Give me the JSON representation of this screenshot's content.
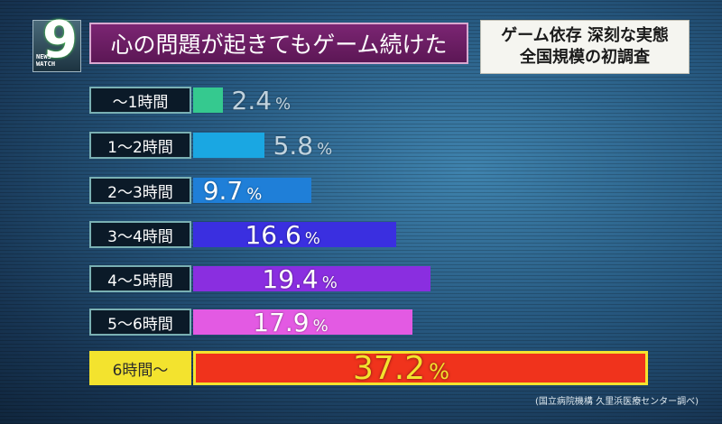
{
  "logo": {
    "numeral": "9",
    "line1": "NEWS",
    "line2": "WATCH"
  },
  "header": {
    "title": "心の問題が起きてもゲーム続けた",
    "subtitle_line1": "ゲーム依存 深刻な実態",
    "subtitle_line2": "全国規模の初調査"
  },
  "chart_data": {
    "type": "bar",
    "orientation": "horizontal",
    "title": "心の問題が起きてもゲーム続けた",
    "categories": [
      "〜1時間",
      "1〜2時間",
      "2〜3時間",
      "3〜4時間",
      "4〜5時間",
      "5〜6時間",
      "6時間〜"
    ],
    "values": [
      2.4,
      5.8,
      9.7,
      16.6,
      19.4,
      17.9,
      37.2
    ],
    "value_labels": [
      "2.4",
      "5.8",
      "9.7",
      "16.6",
      "19.4",
      "17.9",
      "37.2"
    ],
    "unit": "%",
    "colors": [
      "#35c98f",
      "#1aa7e2",
      "#1f7fd8",
      "#3a2fe0",
      "#8a2ee0",
      "#e35ae3",
      "#f0331c"
    ],
    "highlight_index": 6,
    "xlim": [
      0,
      37.2
    ],
    "grid": false,
    "legend": "none"
  },
  "source": "(国立病院機構 久里浜医療センター調べ)"
}
